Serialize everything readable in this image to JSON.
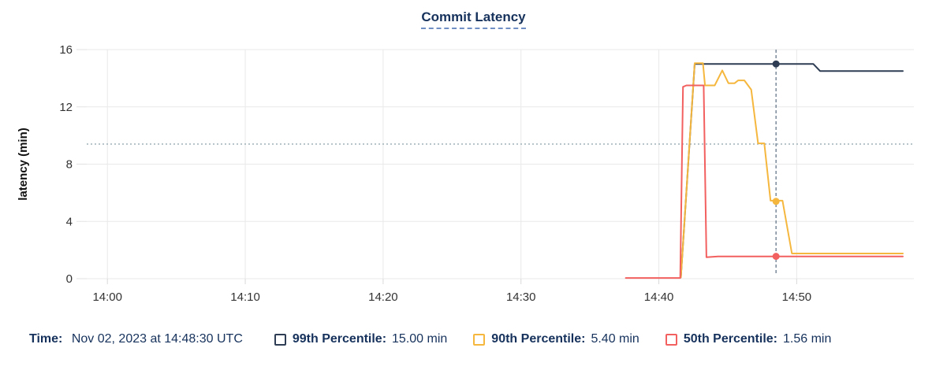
{
  "title": "Commit Latency",
  "chart_data": {
    "type": "line",
    "title": "Commit Latency",
    "xlabel": "",
    "ylabel": "latency (min)",
    "ylim": [
      0,
      16
    ],
    "yticks": [
      0,
      4,
      8,
      12,
      16
    ],
    "x_window_minutes": [
      -1.5,
      58.5
    ],
    "x_reference_time": "14:00",
    "grid": true,
    "legend_position": "bottom",
    "xticks": [
      {
        "t": 0,
        "label": "14:00"
      },
      {
        "t": 10,
        "label": "14:10"
      },
      {
        "t": 20,
        "label": "14:20"
      },
      {
        "t": 30,
        "label": "14:30"
      },
      {
        "t": 40,
        "label": "14:40"
      },
      {
        "t": 50,
        "label": "14:50"
      }
    ],
    "annotation_line": {
      "value": 9.4,
      "style": "dotted",
      "color": "#9fb1b8"
    },
    "cursor": {
      "t": 48.5,
      "time_label": "14:48:30"
    },
    "series": [
      {
        "id": "p99",
        "name": "99th Percentile",
        "color": "#2e3d54",
        "dot_value": 15.0,
        "points_t_min_vs_latency_min": [
          [
            41.6,
            0.1
          ],
          [
            42.6,
            15.0
          ],
          [
            51.2,
            15.0
          ],
          [
            51.7,
            14.5
          ],
          [
            57.7,
            14.5
          ]
        ]
      },
      {
        "id": "p90",
        "name": "90th Percentile",
        "color": "#f5b73e",
        "dot_value": 5.4,
        "points_t_min_vs_latency_min": [
          [
            41.6,
            0.1
          ],
          [
            42.6,
            15.05
          ],
          [
            43.2,
            15.05
          ],
          [
            43.35,
            13.5
          ],
          [
            44.05,
            13.5
          ],
          [
            44.6,
            14.55
          ],
          [
            45.05,
            13.65
          ],
          [
            45.5,
            13.65
          ],
          [
            45.75,
            13.85
          ],
          [
            46.2,
            13.85
          ],
          [
            46.7,
            13.2
          ],
          [
            47.2,
            9.45
          ],
          [
            47.65,
            9.45
          ],
          [
            48.1,
            5.45
          ],
          [
            48.97,
            5.45
          ],
          [
            49.65,
            1.76
          ],
          [
            57.7,
            1.76
          ]
        ]
      },
      {
        "id": "p50",
        "name": "50th Percentile",
        "color": "#f2605f",
        "dot_value": 1.56,
        "points_t_min_vs_latency_min": [
          [
            37.6,
            0.05
          ],
          [
            41.55,
            0.05
          ],
          [
            41.75,
            13.4
          ],
          [
            42.0,
            13.5
          ],
          [
            43.25,
            13.5
          ],
          [
            43.45,
            1.5
          ],
          [
            44.3,
            1.55
          ],
          [
            57.7,
            1.55
          ]
        ]
      }
    ]
  },
  "legend": {
    "time_label": "Time:",
    "time_value": "Nov 02, 2023 at 14:48:30 UTC",
    "items": [
      {
        "label": "99th Percentile:",
        "value": "15.00 min",
        "color": "#2e3d54"
      },
      {
        "label": "90th Percentile:",
        "value": "5.40 min",
        "color": "#f5b73e"
      },
      {
        "label": "50th Percentile:",
        "value": "1.56 min",
        "color": "#f2605f"
      }
    ]
  }
}
